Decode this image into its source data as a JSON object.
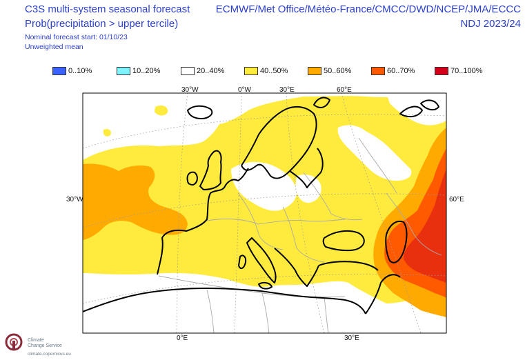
{
  "header": {
    "title": "C3S multi-system seasonal forecast",
    "subtitle": "Prob(precipitation > upper tercile)",
    "forecast_start": "Nominal forecast start: 01/10/23",
    "weighting": "Unweighted mean",
    "centres": "ECMWF/Met Office/Météo-France/CMCC/DWD/NCEP/JMA/ECCC",
    "season": "NDJ 2023/24"
  },
  "legend": [
    {
      "label": "0..10%",
      "color": "#3a62ff"
    },
    {
      "label": "10..20%",
      "color": "#7ff3ff"
    },
    {
      "label": "20..40%",
      "color": "#ffffff"
    },
    {
      "label": "40..50%",
      "color": "#ffeb3d"
    },
    {
      "label": "50..60%",
      "color": "#ffaa00"
    },
    {
      "label": "60..70%",
      "color": "#ff5a00"
    },
    {
      "label": "70..100%",
      "color": "#d4001a"
    }
  ],
  "map": {
    "top_ticks": [
      "30°W",
      "0°W",
      "30°E",
      "60°E"
    ],
    "bottom_ticks": [
      "0°E",
      "30°E"
    ],
    "left_tick": "30°W",
    "right_tick": "60°E",
    "colors": {
      "white": "#ffffff",
      "yellow": "#ffeb3d",
      "light_orange": "#ffaa00",
      "dark_orange": "#ff5a00",
      "red": "#e8300f",
      "coast": "#000000",
      "border": "#aaaaaa",
      "grid": "#9a9a9a"
    }
  },
  "logo": {
    "line1": "Climate",
    "line2": "Change Service",
    "url": "climate.copernicus.eu"
  }
}
